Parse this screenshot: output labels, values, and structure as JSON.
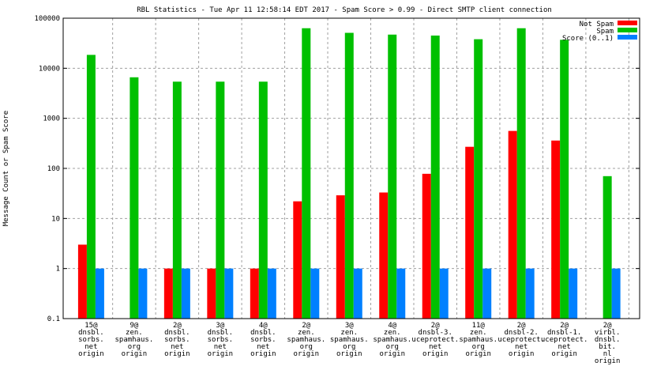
{
  "chart_data": {
    "type": "bar",
    "title": "RBL Statistics - Tue Apr 11 12:58:14 EDT 2017 - Spam Score > 0.99 - Direct SMTP client connection",
    "xlabel": "",
    "ylabel": "Message Count or Spam Score",
    "yscale": "log",
    "ylim": [
      0.1,
      100000
    ],
    "yticks": [
      "0.1",
      "1",
      "10",
      "100",
      "1000",
      "10000",
      "100000"
    ],
    "legend_position": "top-right",
    "grid": true,
    "categories": [
      [
        "15@",
        "dnsbl.",
        "sorbs.",
        "net",
        "origin"
      ],
      [
        "9@",
        "zen.",
        "spamhaus.",
        "org",
        "origin"
      ],
      [
        "2@",
        "dnsbl.",
        "sorbs.",
        "net",
        "origin"
      ],
      [
        "3@",
        "dnsbl.",
        "sorbs.",
        "net",
        "origin"
      ],
      [
        "4@",
        "dnsbl.",
        "sorbs.",
        "net",
        "origin"
      ],
      [
        "2@",
        "zen.",
        "spamhaus.",
        "org",
        "origin"
      ],
      [
        "3@",
        "zen.",
        "spamhaus.",
        "org",
        "origin"
      ],
      [
        "4@",
        "zen.",
        "spamhaus.",
        "org",
        "origin"
      ],
      [
        "2@",
        "dnsbl-3.",
        "uceprotect.",
        "net",
        "origin"
      ],
      [
        "11@",
        "zen.",
        "spamhaus.",
        "org",
        "origin"
      ],
      [
        "2@",
        "dnsbl-2.",
        "uceprotect.",
        "net",
        "origin"
      ],
      [
        "2@",
        "dnsbl-1.",
        "uceprotect.",
        "net",
        "origin"
      ],
      [
        "2@",
        "virbl.",
        "dnsbl.",
        "bit.",
        "nl",
        "origin"
      ]
    ],
    "series": [
      {
        "name": "Not Spam",
        "color": "#ff0000",
        "values": [
          3,
          0,
          1,
          1,
          1,
          22,
          29,
          33,
          78,
          270,
          560,
          360,
          0
        ]
      },
      {
        "name": "Spam",
        "color": "#00c000",
        "values": [
          18500,
          6600,
          5400,
          5400,
          5400,
          63000,
          51000,
          47000,
          45000,
          38000,
          63000,
          37000,
          70
        ]
      },
      {
        "name": "Score (0..1)",
        "color": "#0080ff",
        "values": [
          1,
          1,
          1,
          1,
          1,
          1,
          1,
          1,
          1,
          1,
          1,
          1,
          1
        ]
      }
    ]
  }
}
